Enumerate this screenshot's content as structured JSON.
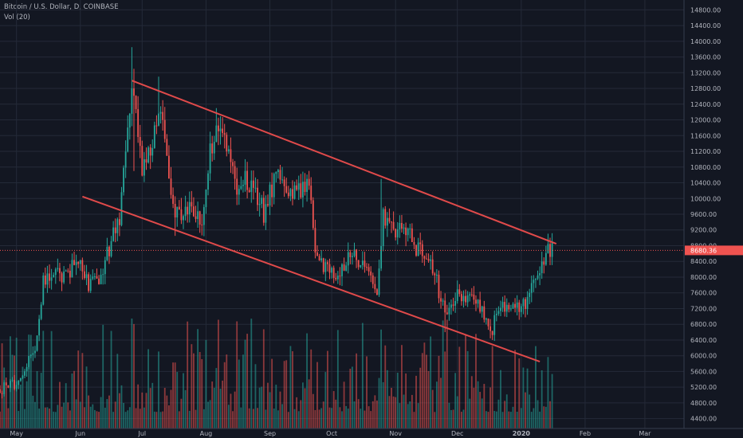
{
  "header": {
    "title": "Bitcoin / U.S. Dollar, D, COINBASE",
    "volume_label": "Vol (20)"
  },
  "colors": {
    "background": "#131722",
    "up": "#26a69a",
    "down": "#ef5350",
    "trendline": "#e04a4a",
    "price_tag": "#ef5350"
  },
  "chart_data": {
    "type": "candlestick",
    "symbol": "Bitcoin / U.S. Dollar",
    "interval": "D",
    "exchange": "COINBASE",
    "ylim": [
      4150,
      15050
    ],
    "y_ticks": [
      4400,
      4800,
      5200,
      5600,
      6000,
      6400,
      6800,
      7200,
      7600,
      8000,
      8400,
      8800,
      9200,
      9600,
      10000,
      10400,
      10800,
      11200,
      11600,
      12000,
      12400,
      12800,
      13200,
      13600,
      14000,
      14400,
      14800
    ],
    "y_tick_labels": [
      "4400.00",
      "4800.00",
      "5200.00",
      "5600.00",
      "6000.00",
      "6400.00",
      "6800.00",
      "7200.00",
      "7600.00",
      "8000.00",
      "8400.00",
      "8800.00",
      "9200.00",
      "9600.00",
      "10000.00",
      "10400.00",
      "10800.00",
      "11200.00",
      "11600.00",
      "12000.00",
      "12400.00",
      "12800.00",
      "13200.00",
      "13600.00",
      "14000.00",
      "14400.00",
      "14800.00"
    ],
    "xlim": [
      "2019-04-23",
      "2020-03-20"
    ],
    "x_ticks": [
      "2019-05-01",
      "2019-06-01",
      "2019-07-01",
      "2019-08-01",
      "2019-09-01",
      "2019-10-01",
      "2019-11-01",
      "2019-12-01",
      "2020-01-01",
      "2020-02-01",
      "2020-03-01"
    ],
    "x_tick_labels": [
      "May",
      "Jun",
      "Jul",
      "Aug",
      "Sep",
      "Oct",
      "Nov",
      "Dec",
      "2020",
      "Feb",
      "Mar"
    ],
    "last_price": 8680.36,
    "last_price_label": "8680.36",
    "anchors": [
      [
        "2019-04-23",
        5150
      ],
      [
        "2019-05-01",
        5300
      ],
      [
        "2019-05-10",
        6100
      ],
      [
        "2019-05-14",
        7900
      ],
      [
        "2019-05-20",
        8050
      ],
      [
        "2019-05-25",
        7950
      ],
      [
        "2019-05-30",
        8550
      ],
      [
        "2019-06-05",
        7750
      ],
      [
        "2019-06-10",
        8000
      ],
      [
        "2019-06-15",
        8700
      ],
      [
        "2019-06-20",
        9500
      ],
      [
        "2019-06-23",
        11000
      ],
      [
        "2019-06-26",
        13000
      ],
      [
        "2019-07-01",
        10700
      ],
      [
        "2019-07-05",
        11200
      ],
      [
        "2019-07-10",
        12300
      ],
      [
        "2019-07-14",
        10300
      ],
      [
        "2019-07-17",
        9600
      ],
      [
        "2019-07-23",
        9800
      ],
      [
        "2019-07-30",
        9500
      ],
      [
        "2019-08-03",
        11200
      ],
      [
        "2019-08-06",
        11800
      ],
      [
        "2019-08-10",
        11600
      ],
      [
        "2019-08-15",
        10300
      ],
      [
        "2019-08-20",
        10500
      ],
      [
        "2019-08-25",
        10200
      ],
      [
        "2019-08-29",
        9600
      ],
      [
        "2019-09-02",
        10300
      ],
      [
        "2019-09-06",
        10500
      ],
      [
        "2019-09-10",
        10200
      ],
      [
        "2019-09-15",
        10300
      ],
      [
        "2019-09-20",
        10200
      ],
      [
        "2019-09-24",
        8400
      ],
      [
        "2019-09-30",
        8200
      ],
      [
        "2019-10-05",
        8100
      ],
      [
        "2019-10-10",
        8600
      ],
      [
        "2019-10-15",
        8300
      ],
      [
        "2019-10-20",
        8200
      ],
      [
        "2019-10-23",
        7400
      ],
      [
        "2019-10-26",
        9600
      ],
      [
        "2019-10-31",
        9200
      ],
      [
        "2019-11-05",
        9300
      ],
      [
        "2019-11-10",
        8800
      ],
      [
        "2019-11-15",
        8500
      ],
      [
        "2019-11-20",
        8100
      ],
      [
        "2019-11-25",
        7000
      ],
      [
        "2019-12-01",
        7500
      ],
      [
        "2019-12-08",
        7500
      ],
      [
        "2019-12-12",
        7200
      ],
      [
        "2019-12-18",
        6700
      ],
      [
        "2019-12-20",
        7150
      ],
      [
        "2019-12-26",
        7250
      ],
      [
        "2019-12-31",
        7200
      ],
      [
        "2020-01-03",
        7300
      ],
      [
        "2020-01-07",
        8050
      ],
      [
        "2020-01-10",
        8100
      ],
      [
        "2020-01-14",
        8800
      ],
      [
        "2020-01-16",
        8680
      ]
    ],
    "volume_scale": [
      0,
      1
    ]
  },
  "trendlines": [
    {
      "name": "upper-trendline",
      "from": [
        "2019-06-26",
        13000
      ],
      "to": [
        "2020-01-18",
        8850
      ]
    },
    {
      "name": "lower-trendline",
      "from": [
        "2019-06-02",
        10050
      ],
      "to": [
        "2020-01-10",
        5850
      ]
    }
  ]
}
